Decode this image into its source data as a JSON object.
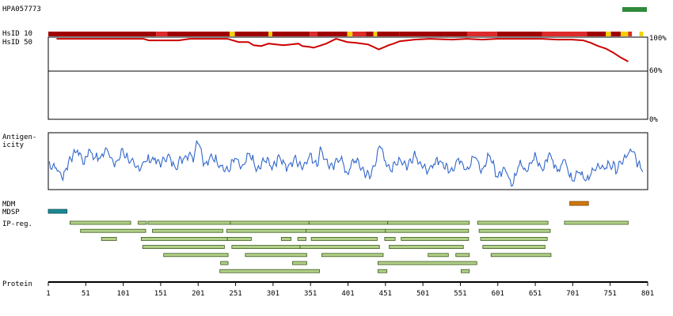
{
  "title": "HPA057773",
  "legend_color": "#2e8b3a",
  "labels": {
    "hsid10": "HsID 10",
    "hsid50": "HsID 50",
    "antigenicity_1": "Antigen-",
    "antigenicity_2": "icity",
    "mdm": "MDM",
    "mdsp": "MDSP",
    "ipreg": "IP-reg.",
    "protein": "Protein"
  },
  "colors": {
    "identity_line": "#cc0000",
    "identity_bar_dark": "#a00000",
    "identity_bar_mid": "#dd2a2a",
    "identity_bar_hi": "#f5d000",
    "antigenicity_line": "#2a62c8",
    "antigenicity_line_light": "#7f9fe0",
    "mdm_fill": "#d2780e",
    "mdsp_fill": "#1a8a96",
    "ip_fill": "#b3d08a",
    "ip_stroke": "#3a5a18"
  },
  "chart_data": [
    {
      "type": "line",
      "name": "identity",
      "ylim": [
        0,
        100
      ],
      "ytick_labels": [
        "100%",
        "60%",
        "0%"
      ],
      "yticks": [
        100,
        60,
        0
      ],
      "x": [
        12,
        40,
        70,
        100,
        128,
        135,
        160,
        175,
        190,
        200,
        215,
        230,
        240,
        255,
        262,
        268,
        275,
        285,
        295,
        305,
        315,
        325,
        335,
        340,
        350,
        355,
        362,
        372,
        385,
        400,
        412,
        420,
        428,
        435,
        442,
        450,
        455,
        462,
        470,
        490,
        510,
        540,
        560,
        580,
        600,
        620,
        640,
        660,
        680,
        700,
        715,
        725,
        735,
        745,
        755,
        765,
        775
      ],
      "y": [
        98,
        98,
        98,
        98,
        98,
        96,
        96,
        96,
        98,
        98,
        98,
        98,
        98,
        94,
        94,
        94,
        90,
        89,
        92,
        91,
        90,
        91,
        92,
        89,
        88,
        87,
        89,
        92,
        98,
        94,
        93,
        92,
        91,
        88,
        85,
        88,
        90,
        92,
        95,
        97,
        98,
        97,
        98,
        97,
        98,
        98,
        98,
        98,
        97,
        97,
        96,
        93,
        89,
        86,
        81,
        75,
        70
      ]
    },
    {
      "type": "heatmap",
      "name": "HsID 10",
      "x_start": 1,
      "x_end": 800,
      "segments": [
        {
          "from": 1,
          "to": 145,
          "level": "dark"
        },
        {
          "from": 145,
          "to": 160,
          "level": "mid"
        },
        {
          "from": 160,
          "to": 243,
          "level": "dark"
        },
        {
          "from": 243,
          "to": 250,
          "level": "hi"
        },
        {
          "from": 250,
          "to": 295,
          "level": "dark"
        },
        {
          "from": 295,
          "to": 300,
          "level": "hi"
        },
        {
          "from": 300,
          "to": 350,
          "level": "dark"
        },
        {
          "from": 350,
          "to": 360,
          "level": "mid"
        },
        {
          "from": 360,
          "to": 400,
          "level": "dark"
        },
        {
          "from": 400,
          "to": 407,
          "level": "hi"
        },
        {
          "from": 407,
          "to": 425,
          "level": "mid"
        },
        {
          "from": 425,
          "to": 435,
          "level": "dark"
        },
        {
          "from": 435,
          "to": 440,
          "level": "hi"
        },
        {
          "from": 440,
          "to": 470,
          "level": "dark"
        },
        {
          "from": 470,
          "to": 530,
          "level": "dark"
        },
        {
          "from": 530,
          "to": 560,
          "level": "dark"
        },
        {
          "from": 560,
          "to": 600,
          "level": "mid"
        },
        {
          "from": 600,
          "to": 660,
          "level": "dark"
        },
        {
          "from": 660,
          "to": 720,
          "level": "mid"
        },
        {
          "from": 720,
          "to": 745,
          "level": "dark"
        },
        {
          "from": 745,
          "to": 752,
          "level": "hi"
        },
        {
          "from": 752,
          "to": 765,
          "level": "dark"
        },
        {
          "from": 765,
          "to": 775,
          "level": "hi"
        },
        {
          "from": 775,
          "to": 780,
          "level": "mid"
        },
        {
          "from": 790,
          "to": 795,
          "level": "hi"
        }
      ]
    },
    {
      "type": "line",
      "name": "antigenicity",
      "x": [
        1,
        10,
        20,
        30,
        40,
        50,
        55,
        60,
        70,
        80,
        90,
        100,
        110,
        120,
        130,
        140,
        150,
        160,
        170,
        180,
        190,
        195,
        200,
        205,
        210,
        220,
        230,
        240,
        250,
        260,
        270,
        280,
        290,
        300,
        310,
        320,
        330,
        340,
        350,
        360,
        365,
        370,
        380,
        390,
        400,
        410,
        420,
        430,
        440,
        445,
        450,
        460,
        470,
        480,
        490,
        500,
        510,
        520,
        530,
        540,
        550,
        560,
        570,
        580,
        590,
        600,
        610,
        620,
        630,
        640,
        650,
        660,
        670,
        680,
        690,
        700,
        710,
        720,
        730,
        740,
        750,
        760,
        770,
        780,
        790,
        795
      ],
      "y": [
        0.45,
        0.4,
        0.2,
        0.55,
        0.7,
        0.45,
        0.75,
        0.6,
        0.55,
        0.75,
        0.4,
        0.7,
        0.5,
        0.35,
        0.5,
        0.55,
        0.45,
        0.6,
        0.4,
        0.55,
        0.65,
        0.55,
        0.95,
        0.7,
        0.4,
        0.6,
        0.45,
        0.3,
        0.55,
        0.35,
        0.65,
        0.3,
        0.55,
        0.4,
        0.6,
        0.35,
        0.55,
        0.4,
        0.6,
        0.45,
        0.75,
        0.55,
        0.35,
        0.6,
        0.25,
        0.55,
        0.35,
        0.2,
        0.6,
        0.8,
        0.5,
        0.35,
        0.55,
        0.4,
        0.65,
        0.4,
        0.3,
        0.55,
        0.4,
        0.35,
        0.55,
        0.35,
        0.6,
        0.3,
        0.65,
        0.2,
        0.4,
        0.05,
        0.45,
        0.3,
        0.6,
        0.35,
        0.65,
        0.3,
        0.55,
        0.15,
        0.35,
        0.1,
        0.4,
        0.35,
        0.45,
        0.35,
        0.55,
        0.7,
        0.4,
        0.35
      ]
    },
    {
      "type": "bar",
      "name": "features",
      "mdm": [
        {
          "from": 697,
          "to": 722
        }
      ],
      "mdsp": [
        {
          "from": 1,
          "to": 26
        }
      ],
      "ip_regions": [
        {
          "from": 30,
          "to": 111,
          "row": 0
        },
        {
          "from": 121,
          "to": 132,
          "row": 0
        },
        {
          "from": 134,
          "to": 244,
          "row": 0
        },
        {
          "from": 244,
          "to": 349,
          "row": 0
        },
        {
          "from": 349,
          "to": 454,
          "row": 0
        },
        {
          "from": 454,
          "to": 563,
          "row": 0
        },
        {
          "from": 574,
          "to": 668,
          "row": 0
        },
        {
          "from": 690,
          "to": 775,
          "row": 0
        },
        {
          "from": 44,
          "to": 131,
          "row": 1
        },
        {
          "from": 140,
          "to": 234,
          "row": 1
        },
        {
          "from": 239,
          "to": 345,
          "row": 1
        },
        {
          "from": 345,
          "to": 451,
          "row": 1
        },
        {
          "from": 451,
          "to": 562,
          "row": 1
        },
        {
          "from": 576,
          "to": 671,
          "row": 1
        },
        {
          "from": 72,
          "to": 92,
          "row": 2
        },
        {
          "from": 125,
          "to": 240,
          "row": 2
        },
        {
          "from": 240,
          "to": 272,
          "row": 2
        },
        {
          "from": 312,
          "to": 325,
          "row": 2
        },
        {
          "from": 334,
          "to": 345,
          "row": 2
        },
        {
          "from": 352,
          "to": 440,
          "row": 2
        },
        {
          "from": 450,
          "to": 464,
          "row": 2
        },
        {
          "from": 472,
          "to": 562,
          "row": 2
        },
        {
          "from": 578,
          "to": 667,
          "row": 2
        },
        {
          "from": 127,
          "to": 236,
          "row": 3
        },
        {
          "from": 246,
          "to": 337,
          "row": 3
        },
        {
          "from": 337,
          "to": 443,
          "row": 3
        },
        {
          "from": 456,
          "to": 555,
          "row": 3
        },
        {
          "from": 581,
          "to": 664,
          "row": 3
        },
        {
          "from": 155,
          "to": 241,
          "row": 4
        },
        {
          "from": 264,
          "to": 346,
          "row": 4
        },
        {
          "from": 366,
          "to": 448,
          "row": 4
        },
        {
          "from": 508,
          "to": 535,
          "row": 4
        },
        {
          "from": 545,
          "to": 563,
          "row": 4
        },
        {
          "from": 592,
          "to": 672,
          "row": 4
        },
        {
          "from": 231,
          "to": 241,
          "row": 5
        },
        {
          "from": 327,
          "to": 346,
          "row": 5
        },
        {
          "from": 441,
          "to": 573,
          "row": 5
        },
        {
          "from": 230,
          "to": 363,
          "row": 6
        },
        {
          "from": 441,
          "to": 453,
          "row": 6
        },
        {
          "from": 552,
          "to": 563,
          "row": 6
        }
      ]
    }
  ],
  "x_axis": {
    "ticks": [
      1,
      51,
      101,
      151,
      201,
      251,
      301,
      351,
      401,
      451,
      501,
      551,
      601,
      651,
      701,
      751,
      801
    ],
    "labels": [
      "1",
      "51",
      "101",
      "151",
      "201",
      "251",
      "301",
      "351",
      "401",
      "451",
      "501",
      "551",
      "601",
      "651",
      "701",
      "751",
      "801"
    ],
    "max": 801
  }
}
